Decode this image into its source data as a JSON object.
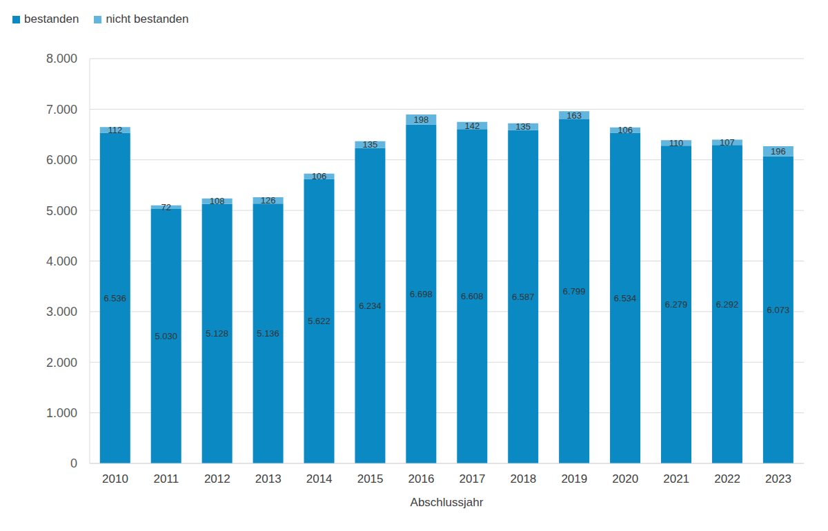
{
  "chart_data": {
    "type": "bar",
    "stacked": true,
    "grid": true,
    "data_labels": true,
    "legend": "top-left",
    "x_label": "Abschlussjahr",
    "categories": [
      "2010",
      "2011",
      "2012",
      "2013",
      "2014",
      "2015",
      "2016",
      "2017",
      "2018",
      "2019",
      "2020",
      "2021",
      "2022",
      "2023"
    ],
    "series": [
      {
        "name": "bestanden",
        "color": "#0a89c2",
        "values": [
          6536,
          5030,
          5128,
          5136,
          5622,
          6234,
          6698,
          6608,
          6587,
          6799,
          6534,
          6279,
          6292,
          6073
        ],
        "value_labels": [
          "6.536",
          "5.030",
          "5.128",
          "5.136",
          "5.622",
          "6.234",
          "6.698",
          "6.608",
          "6.587",
          "6.799",
          "6.534",
          "6.279",
          "6.292",
          "6.073"
        ]
      },
      {
        "name": "nicht bestanden",
        "color": "#62b6dd",
        "values": [
          112,
          72,
          108,
          126,
          106,
          135,
          198,
          142,
          135,
          163,
          106,
          110,
          107,
          196
        ]
      }
    ],
    "ylim": [
      0,
      8000
    ],
    "yticks": [
      0,
      {
        "value": 1000,
        "label": "1.000"
      },
      {
        "value": 2000,
        "label": "2.000"
      },
      {
        "value": 3000,
        "label": "3.000"
      },
      {
        "value": 4000,
        "label": "4.000"
      },
      {
        "value": 5000,
        "label": "5.000"
      },
      {
        "value": 6000,
        "label": "6.000"
      },
      {
        "value": 7000,
        "label": "7.000"
      },
      {
        "value": 8000,
        "label": "8.000"
      }
    ]
  }
}
